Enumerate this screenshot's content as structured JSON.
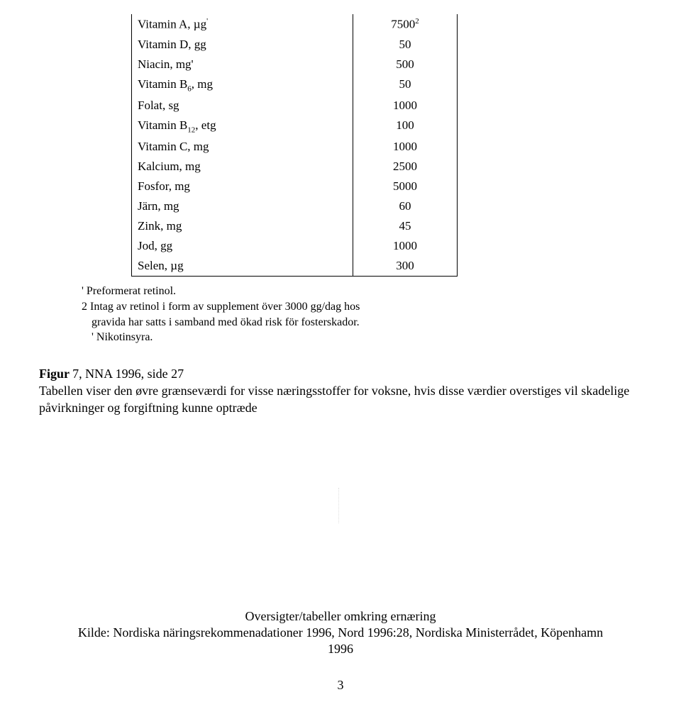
{
  "table": {
    "rows": [
      {
        "label_html": "Vitamin A, µg<span class='sup'>'</span>",
        "value_html": "7500<span class='sup'>2</span>"
      },
      {
        "label_html": "Vitamin D, gg",
        "value_html": "50"
      },
      {
        "label_html": "Niacin, mg'",
        "value_html": "500"
      },
      {
        "label_html": "Vitamin B<span class='sub'>6</span>, mg",
        "value_html": "50"
      },
      {
        "label_html": "Folat, sg",
        "value_html": "1000"
      },
      {
        "label_html": "Vitamin B<span class='sub'>12</span>, etg",
        "value_html": "100"
      },
      {
        "label_html": "Vitamin C, mg",
        "value_html": "1000"
      },
      {
        "label_html": "Kalcium, mg",
        "value_html": "2500"
      },
      {
        "label_html": "Fosfor, mg",
        "value_html": "5000"
      },
      {
        "label_html": "Järn, mg",
        "value_html": "60"
      },
      {
        "label_html": "Zink, mg",
        "value_html": "45"
      },
      {
        "label_html": "Jod, gg",
        "value_html": "1000"
      },
      {
        "label_html": "Selen, µg",
        "value_html": "300"
      }
    ]
  },
  "footnotes": {
    "f1": "' Preformerat retinol.",
    "f2": "2 Intag av retinol i form av supplement över 3000 gg/dag hos",
    "f2b": "gravida har satts i samband med ökad risk för fosterskador.",
    "f3": "' Nikotinsyra."
  },
  "caption": {
    "figlabel": "Figur ",
    "fignum": "7, NNA 1996, side 27",
    "body": "Tabellen viser den øvre grænseværdi for visse næringsstoffer for voksne, hvis disse værdier overstiges vil skadelige påvirkninger og forgiftning kunne optræde"
  },
  "source": {
    "line1": "Oversigter/tabeller omkring ernæring",
    "line2": "Kilde: Nordiska näringsrekommenadationer 1996, Nord 1996:28, Nordiska Ministerrådet, Köpenhamn",
    "line3": "1996"
  },
  "pagenum": "3"
}
